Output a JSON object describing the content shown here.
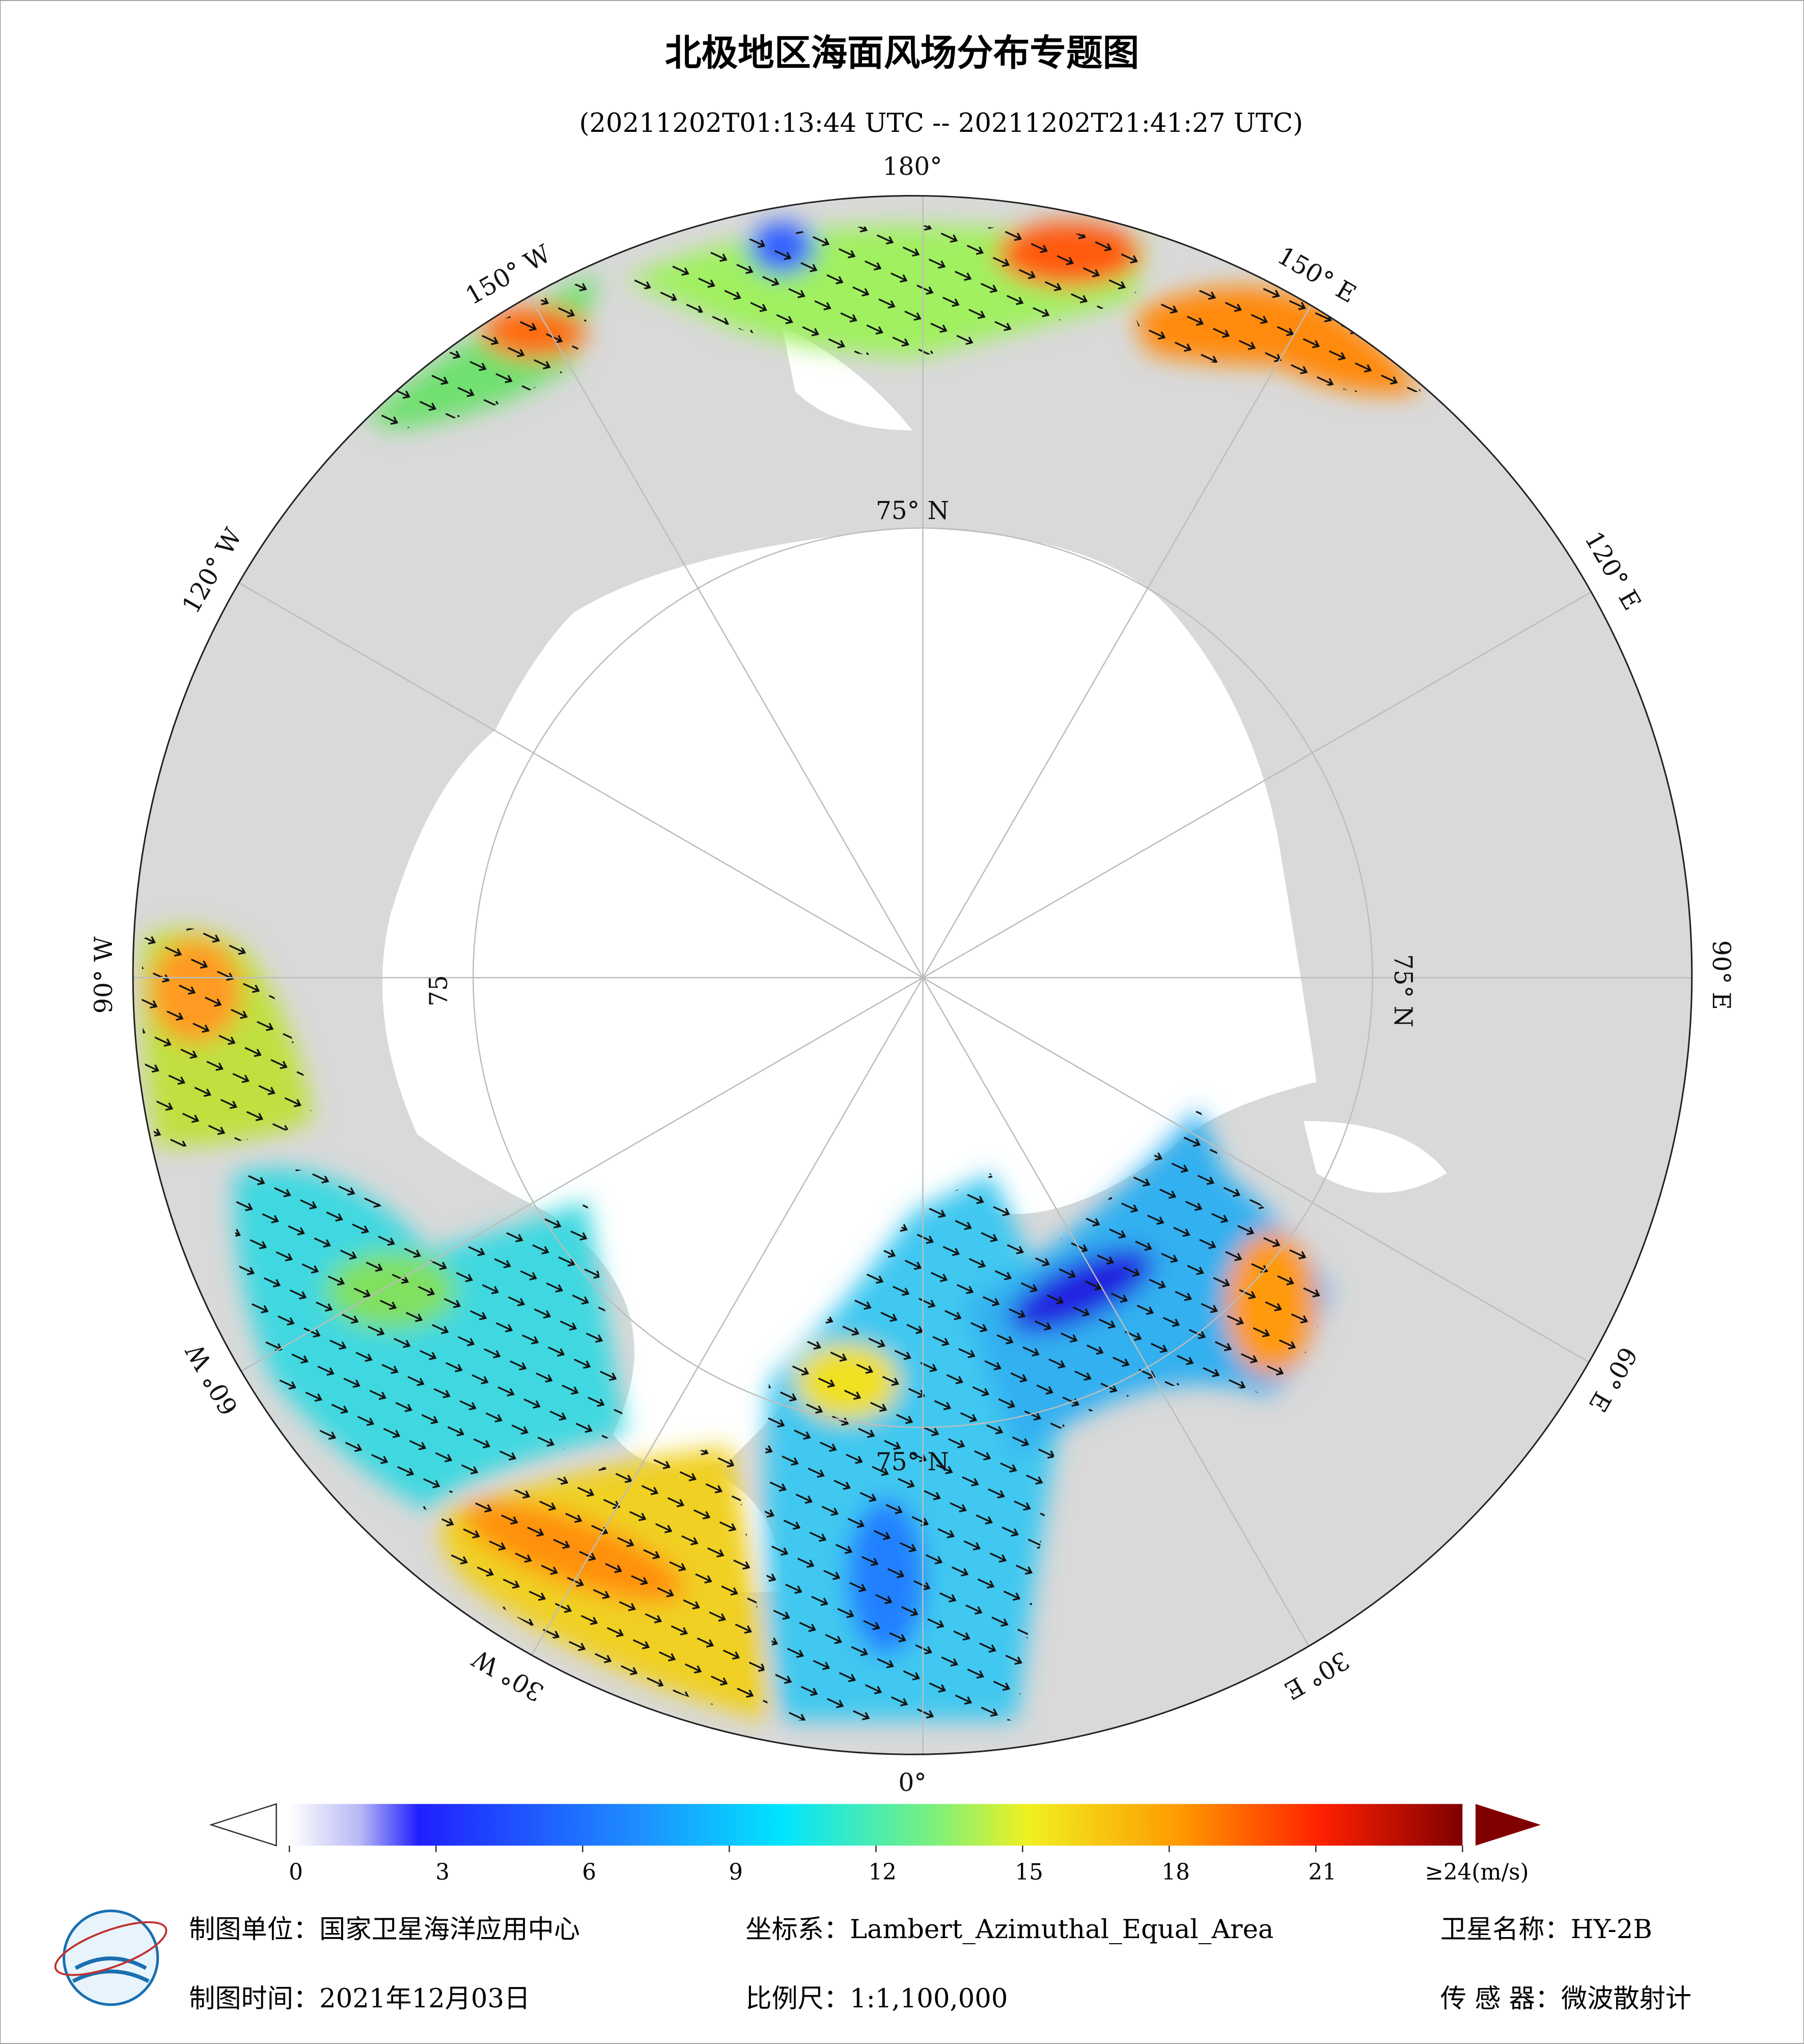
{
  "header": {
    "title": "北极地区海面风场分布专题图",
    "subtitle": "(20211202T01:13:44 UTC -- 20211202T21:41:27 UTC)"
  },
  "map": {
    "lon_labels": [
      "180°",
      "150° E",
      "120° E",
      "90° E",
      "60° E",
      "30° E",
      "0°",
      "30° W",
      "60° W",
      "90° W",
      "120° W",
      "150° W"
    ],
    "lat_labels": [
      "75° N",
      "75° N",
      "75° N",
      "75"
    ]
  },
  "colorbar": {
    "ticks": [
      0,
      3,
      6,
      9,
      12,
      15,
      18,
      21
    ],
    "max": 24,
    "max_label": "≥24(m/s)"
  },
  "footer": {
    "items": [
      "制图单位：国家卫星海洋应用中心",
      "坐标系：Lambert_Azimuthal_Equal_Area",
      "卫星名称：HY-2B",
      "制图时间：2021年12月03日",
      "比例尺：1:1,100,000",
      "传 感 器：微波散射计"
    ]
  }
}
